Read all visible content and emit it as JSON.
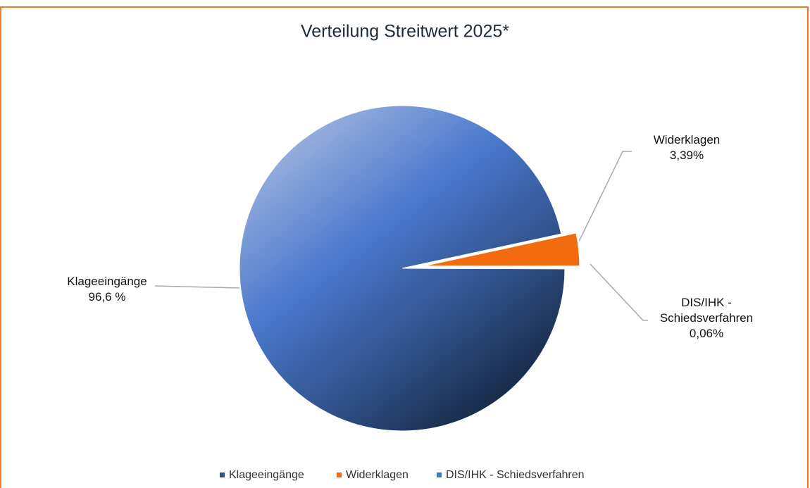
{
  "chart_data": {
    "type": "pie",
    "title": "Verteilung Streitwert 2025*",
    "categories": [
      "Klageeingänge",
      "Widerklagen",
      "DIS/IHK - Schiedsverfahren"
    ],
    "values": [
      96.6,
      3.39,
      0.06
    ],
    "value_labels": [
      "96,6 %",
      "3,39%",
      "0,06%"
    ],
    "colors": [
      "#2f4f86",
      "#f26b0f",
      "#4472c4"
    ],
    "legend": "bottom"
  }
}
